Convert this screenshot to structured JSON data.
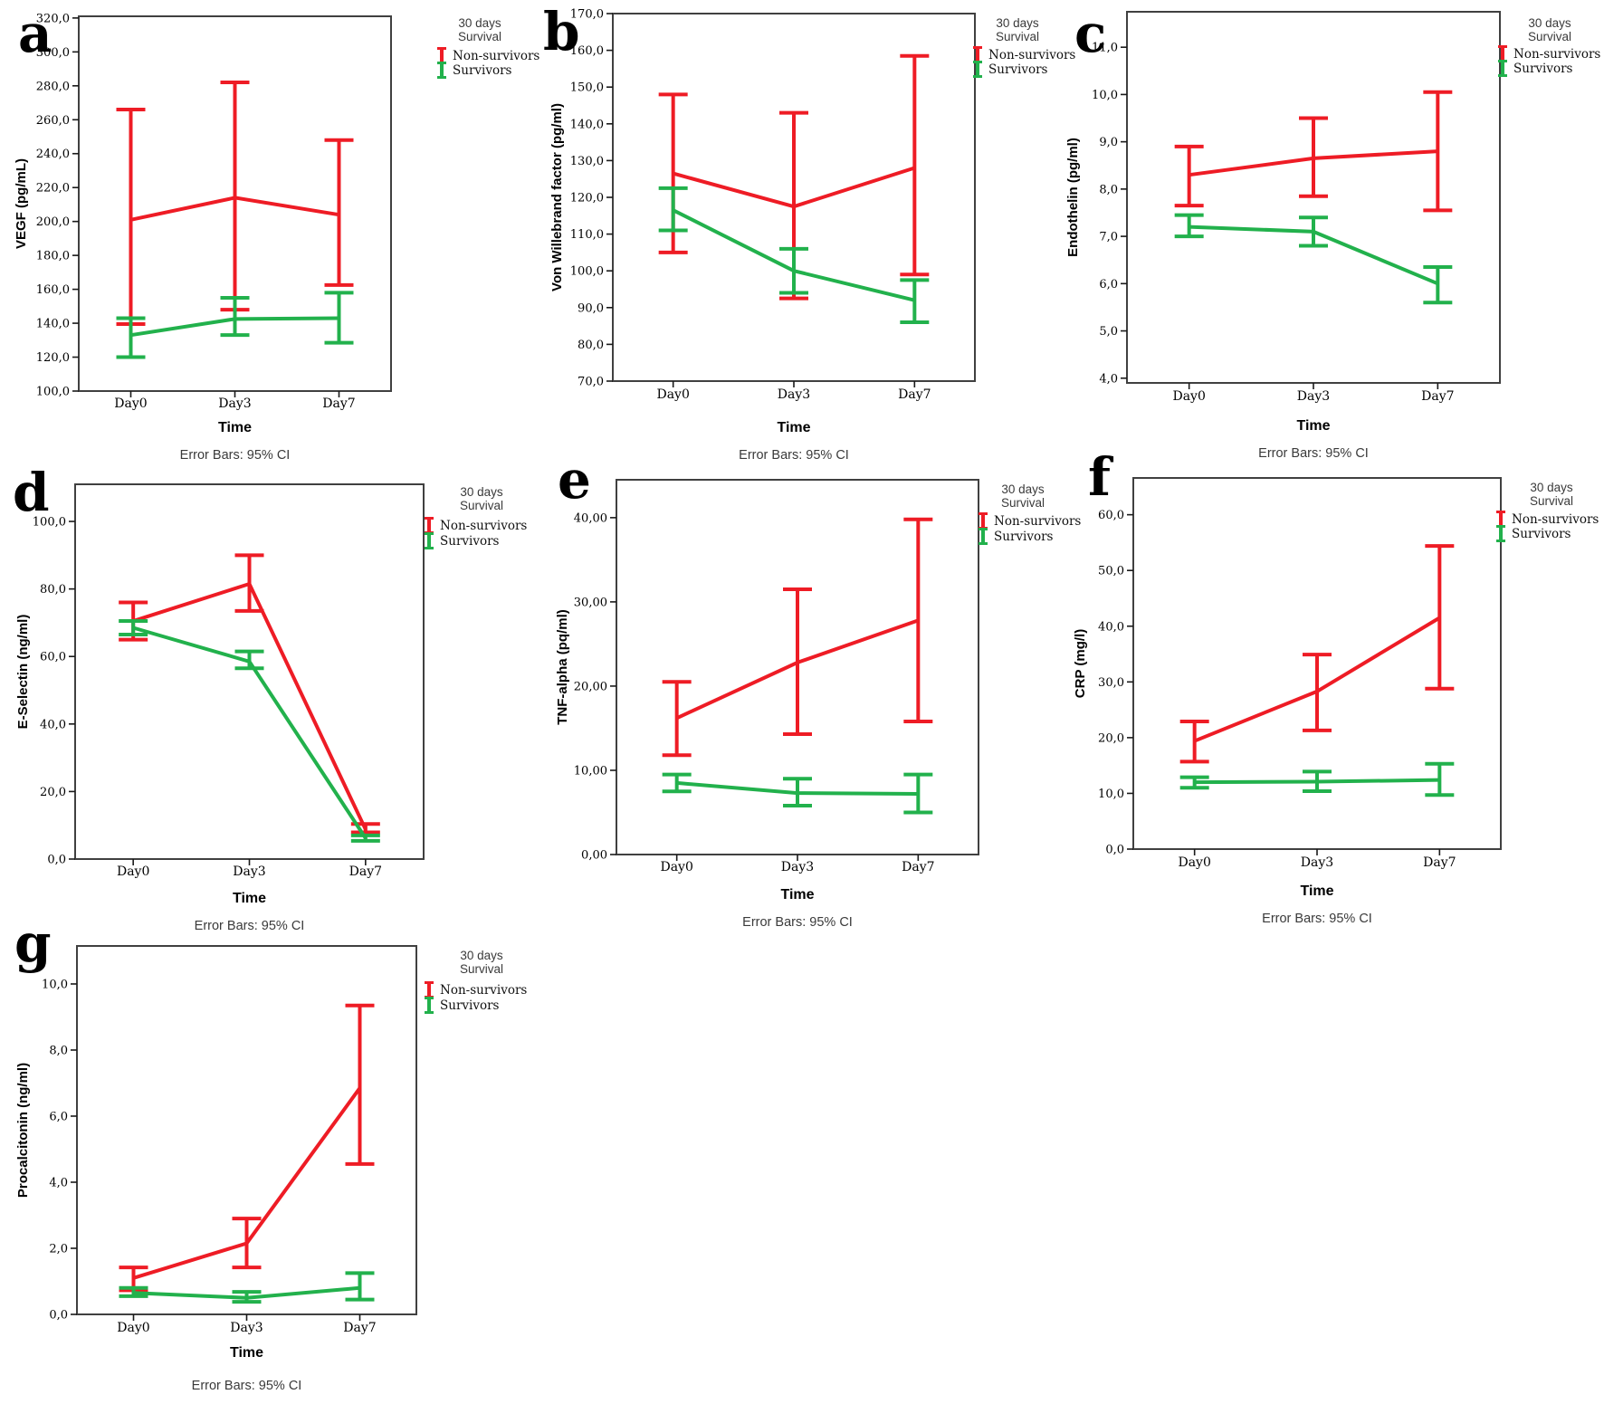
{
  "figure": {
    "xlabel": "Time",
    "caption": "Error Bars: 95% CI",
    "categories": [
      "Day0",
      "Day3",
      "Day7"
    ],
    "legend": {
      "title_line1": "30 days",
      "title_line2": "Survival",
      "entries": [
        {
          "label": "Non-survivors",
          "color": "#ee1c25",
          "icon": "error-bar-icon"
        },
        {
          "label": "Survivors",
          "color": "#22b14c",
          "icon": "error-bar-icon"
        }
      ]
    },
    "colors": {
      "non_survivors": "#ee1c25",
      "survivors": "#22b14c",
      "plot_border": "#404040",
      "text": "#000000",
      "caption_text": "#3a3a3a"
    }
  },
  "chart_data": [
    {
      "panel": "a",
      "type": "line",
      "ylabel": "VEGF (pg/mL)",
      "xlabel": "Time",
      "categories": [
        "Day0",
        "Day3",
        "Day7"
      ],
      "yticks": {
        "min": 100,
        "max": 320,
        "step": 20,
        "decimals": 1
      },
      "ylim": [
        100,
        321
      ],
      "error_bars": "95% CI",
      "legend_position": "right-top",
      "series": [
        {
          "name": "Non-survivors",
          "color": "#ee1c25",
          "means": [
            201,
            214,
            204
          ],
          "ci_low": [
            139.5,
            148,
            162.5
          ],
          "ci_high": [
            266,
            282,
            248
          ]
        },
        {
          "name": "Survivors",
          "color": "#22b14c",
          "means": [
            133,
            142.5,
            143
          ],
          "ci_low": [
            120,
            133,
            128.5
          ],
          "ci_high": [
            143,
            155,
            158
          ]
        }
      ]
    },
    {
      "panel": "b",
      "type": "line",
      "ylabel": "Von Willebrand factor (pg/ml)",
      "xlabel": "Time",
      "categories": [
        "Day0",
        "Day3",
        "Day7"
      ],
      "yticks": {
        "min": 70,
        "max": 170,
        "step": 10,
        "decimals": 1
      },
      "ylim": [
        70,
        170
      ],
      "error_bars": "95% CI",
      "legend_position": "right-top",
      "series": [
        {
          "name": "Non-survivors",
          "color": "#ee1c25",
          "means": [
            126.5,
            117.5,
            128
          ],
          "ci_low": [
            105,
            92.5,
            99
          ],
          "ci_high": [
            148,
            143,
            158.5
          ]
        },
        {
          "name": "Survivors",
          "color": "#22b14c",
          "means": [
            116.5,
            100,
            92
          ],
          "ci_low": [
            111,
            94,
            86
          ],
          "ci_high": [
            122.5,
            106,
            97.5
          ]
        }
      ]
    },
    {
      "panel": "c",
      "type": "line",
      "ylabel": "Endothelin (pg/ml)",
      "xlabel": "Time",
      "categories": [
        "Day0",
        "Day3",
        "Day7"
      ],
      "yticks": {
        "min": 4,
        "max": 11,
        "step": 1,
        "decimals": 1
      },
      "ylim": [
        3.9,
        11.75
      ],
      "error_bars": "95% CI",
      "legend_position": "right-top",
      "series": [
        {
          "name": "Non-survivors",
          "color": "#ee1c25",
          "means": [
            8.3,
            8.65,
            8.8
          ],
          "ci_low": [
            7.65,
            7.85,
            7.55
          ],
          "ci_high": [
            8.9,
            9.5,
            10.05
          ]
        },
        {
          "name": "Survivors",
          "color": "#22b14c",
          "means": [
            7.2,
            7.1,
            6.0
          ],
          "ci_low": [
            7.0,
            6.8,
            5.6
          ],
          "ci_high": [
            7.45,
            7.4,
            6.35
          ]
        }
      ]
    },
    {
      "panel": "d",
      "type": "line",
      "ylabel": "E-Selectin (ng/ml)",
      "xlabel": "Time",
      "categories": [
        "Day0",
        "Day3",
        "Day7"
      ],
      "yticks": {
        "min": 0,
        "max": 100,
        "step": 20,
        "decimals": 1
      },
      "ylim": [
        0,
        111
      ],
      "error_bars": "95% CI",
      "legend_position": "right-top",
      "series": [
        {
          "name": "Non-survivors",
          "color": "#ee1c25",
          "means": [
            70.5,
            81.5,
            8.8
          ],
          "ci_low": [
            65,
            73.5,
            7.9
          ],
          "ci_high": [
            76,
            90,
            10.4
          ]
        },
        {
          "name": "Survivors",
          "color": "#22b14c",
          "means": [
            68.5,
            58.5,
            6.2
          ],
          "ci_low": [
            66.5,
            56.5,
            5.4
          ],
          "ci_high": [
            70.5,
            61.5,
            7.0
          ]
        }
      ]
    },
    {
      "panel": "e",
      "type": "line",
      "ylabel": "TNF-alpha (pq/ml)",
      "xlabel": "Time",
      "categories": [
        "Day0",
        "Day3",
        "Day7"
      ],
      "yticks": {
        "min": 0,
        "max": 40,
        "step": 10,
        "decimals": 2
      },
      "ylim": [
        0,
        44.5
      ],
      "error_bars": "95% CI",
      "legend_position": "right-top",
      "series": [
        {
          "name": "Non-survivors",
          "color": "#ee1c25",
          "means": [
            16.2,
            22.8,
            27.8
          ],
          "ci_low": [
            11.8,
            14.3,
            15.8
          ],
          "ci_high": [
            20.5,
            31.5,
            39.8
          ]
        },
        {
          "name": "Survivors",
          "color": "#22b14c",
          "means": [
            8.5,
            7.3,
            7.2
          ],
          "ci_low": [
            7.5,
            5.8,
            5.0
          ],
          "ci_high": [
            9.5,
            9.0,
            9.5
          ]
        }
      ]
    },
    {
      "panel": "f",
      "type": "line",
      "ylabel": "CRP (mg/l)",
      "xlabel": "Time",
      "categories": [
        "Day0",
        "Day3",
        "Day7"
      ],
      "yticks": {
        "min": 0,
        "max": 60,
        "step": 10,
        "decimals": 1
      },
      "ylim": [
        0,
        66.6
      ],
      "error_bars": "95% CI",
      "legend_position": "right-top",
      "series": [
        {
          "name": "Non-survivors",
          "color": "#ee1c25",
          "means": [
            19.4,
            28.3,
            41.5
          ],
          "ci_low": [
            15.7,
            21.3,
            28.8
          ],
          "ci_high": [
            22.9,
            34.9,
            54.4
          ]
        },
        {
          "name": "Survivors",
          "color": "#22b14c",
          "means": [
            12.0,
            12.1,
            12.4
          ],
          "ci_low": [
            11.0,
            10.4,
            9.7
          ],
          "ci_high": [
            12.9,
            13.9,
            15.3
          ]
        }
      ]
    },
    {
      "panel": "g",
      "type": "line",
      "ylabel": "Procalcitonin (ng/ml)",
      "xlabel": "Time",
      "categories": [
        "Day0",
        "Day3",
        "Day7"
      ],
      "yticks": {
        "min": 0,
        "max": 10,
        "step": 2,
        "decimals": 1
      },
      "ylim": [
        0,
        11.15
      ],
      "error_bars": "95% CI",
      "legend_position": "right-top",
      "series": [
        {
          "name": "Non-survivors",
          "color": "#ee1c25",
          "means": [
            1.1,
            2.15,
            6.85
          ],
          "ci_low": [
            0.73,
            1.42,
            4.55
          ],
          "ci_high": [
            1.42,
            2.9,
            9.35
          ]
        },
        {
          "name": "Survivors",
          "color": "#22b14c",
          "means": [
            0.65,
            0.5,
            0.8
          ],
          "ci_low": [
            0.55,
            0.38,
            0.45
          ],
          "ci_high": [
            0.8,
            0.68,
            1.25
          ]
        }
      ]
    }
  ]
}
